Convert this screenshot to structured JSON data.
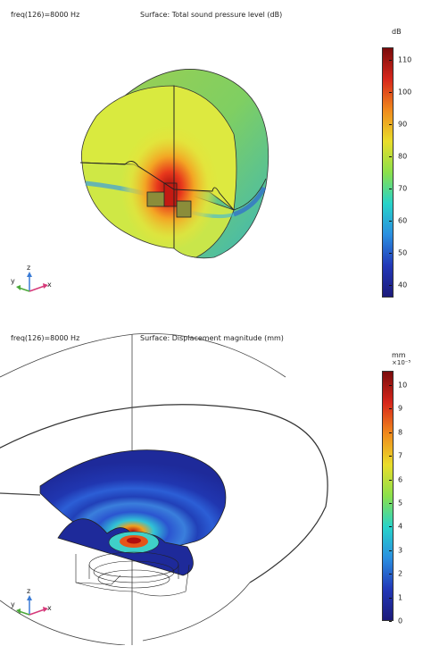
{
  "panel1": {
    "freq_label": "freq(126)=8000 Hz",
    "surface_label": "Surface: Total sound pressure level (dB)",
    "colorbar_unit": "dB",
    "colorbar_ticks": [
      "110",
      "100",
      "90",
      "80",
      "70",
      "60",
      "50",
      "40"
    ],
    "axes": {
      "x": "x",
      "y": "y",
      "z": "z"
    }
  },
  "panel2": {
    "freq_label": "freq(126)=8000 Hz",
    "surface_label": "Surface: Displacement magnitude (mm)",
    "colorbar_unit": "mm",
    "colorbar_exponent": "×10⁻⁵",
    "colorbar_ticks": [
      "10",
      "9",
      "8",
      "7",
      "6",
      "5",
      "4",
      "3",
      "2",
      "1",
      "0"
    ],
    "axes": {
      "x": "x",
      "y": "y",
      "z": "z"
    }
  },
  "colors": {
    "rainbow": [
      "#7a0b0b",
      "#d7261b",
      "#f08a1c",
      "#e9dd2a",
      "#8be04b",
      "#27d3c9",
      "#2a8fe0",
      "#2238b8",
      "#1c1a7a"
    ]
  }
}
